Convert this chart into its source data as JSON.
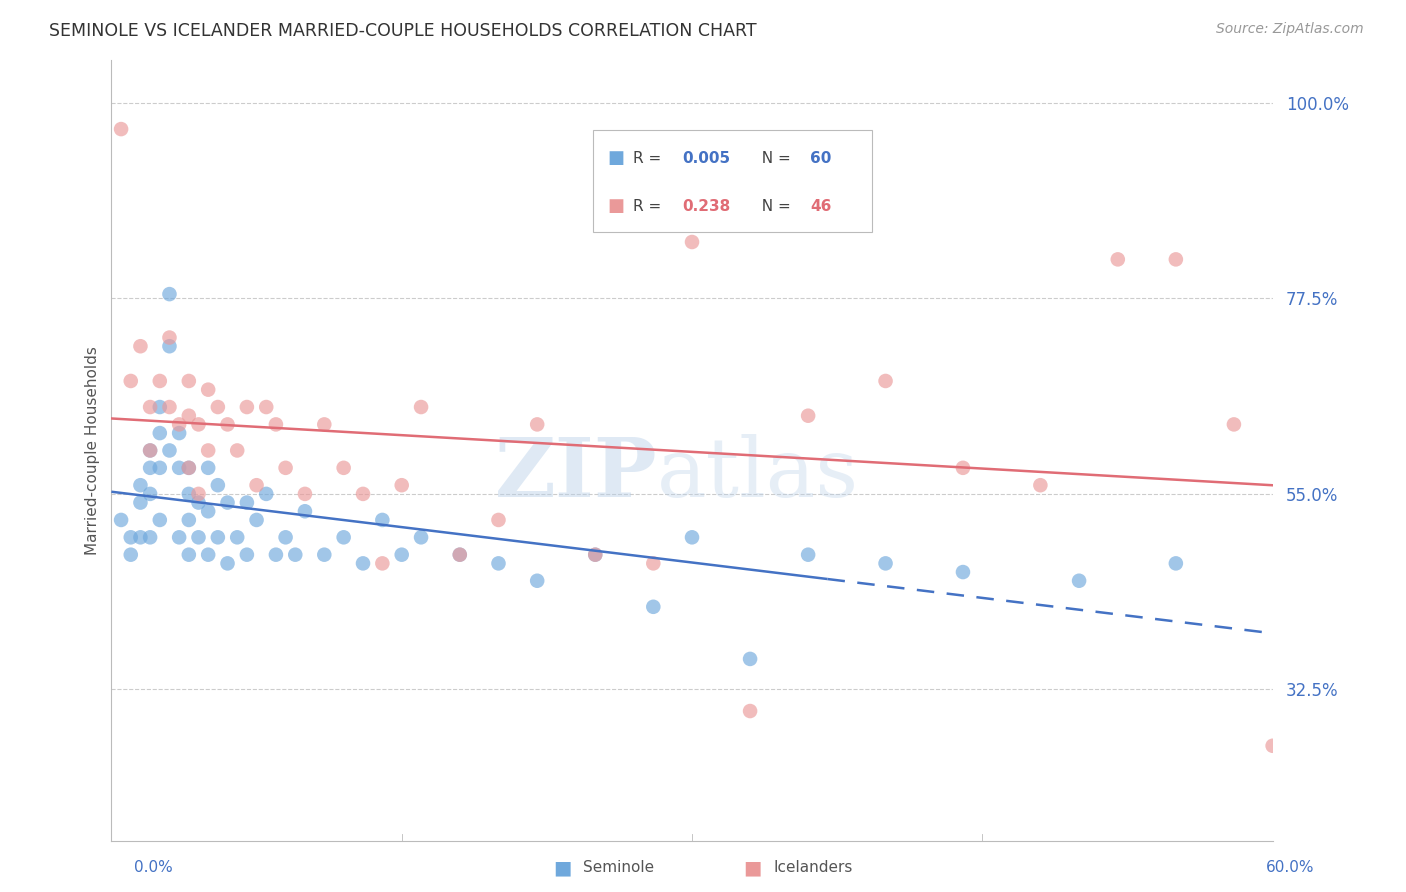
{
  "title": "SEMINOLE VS ICELANDER MARRIED-COUPLE HOUSEHOLDS CORRELATION CHART",
  "source": "Source: ZipAtlas.com",
  "ylabel": "Married-couple Households",
  "ytick_vals": [
    1.0,
    0.775,
    0.55,
    0.325
  ],
  "xmin": 0.0,
  "xmax": 0.6,
  "ymin": 0.15,
  "ymax": 1.05,
  "color_blue": "#6fa8dc",
  "color_pink": "#ea9999",
  "color_blue_line": "#4472c4",
  "color_pink_line": "#e06c75",
  "color_axis_labels": "#4472c4",
  "watermark_zip": "ZIP",
  "watermark_atlas": "atlas",
  "seminole_x": [
    0.005,
    0.01,
    0.01,
    0.015,
    0.015,
    0.015,
    0.02,
    0.02,
    0.02,
    0.02,
    0.025,
    0.025,
    0.025,
    0.025,
    0.03,
    0.03,
    0.03,
    0.035,
    0.035,
    0.035,
    0.04,
    0.04,
    0.04,
    0.04,
    0.045,
    0.045,
    0.05,
    0.05,
    0.05,
    0.055,
    0.055,
    0.06,
    0.06,
    0.065,
    0.07,
    0.07,
    0.075,
    0.08,
    0.085,
    0.09,
    0.095,
    0.1,
    0.11,
    0.12,
    0.13,
    0.14,
    0.15,
    0.16,
    0.18,
    0.2,
    0.22,
    0.25,
    0.28,
    0.3,
    0.33,
    0.36,
    0.4,
    0.44,
    0.5,
    0.55
  ],
  "seminole_y": [
    0.52,
    0.48,
    0.5,
    0.56,
    0.54,
    0.5,
    0.6,
    0.58,
    0.55,
    0.5,
    0.65,
    0.62,
    0.58,
    0.52,
    0.78,
    0.72,
    0.6,
    0.62,
    0.58,
    0.5,
    0.58,
    0.55,
    0.52,
    0.48,
    0.54,
    0.5,
    0.58,
    0.53,
    0.48,
    0.56,
    0.5,
    0.54,
    0.47,
    0.5,
    0.54,
    0.48,
    0.52,
    0.55,
    0.48,
    0.5,
    0.48,
    0.53,
    0.48,
    0.5,
    0.47,
    0.52,
    0.48,
    0.5,
    0.48,
    0.47,
    0.45,
    0.48,
    0.42,
    0.5,
    0.36,
    0.48,
    0.47,
    0.46,
    0.45,
    0.47
  ],
  "icelander_x": [
    0.005,
    0.01,
    0.015,
    0.02,
    0.02,
    0.025,
    0.03,
    0.03,
    0.035,
    0.04,
    0.04,
    0.04,
    0.045,
    0.045,
    0.05,
    0.05,
    0.055,
    0.06,
    0.065,
    0.07,
    0.075,
    0.08,
    0.085,
    0.09,
    0.1,
    0.11,
    0.12,
    0.13,
    0.14,
    0.15,
    0.16,
    0.18,
    0.2,
    0.22,
    0.25,
    0.28,
    0.3,
    0.33,
    0.36,
    0.4,
    0.44,
    0.48,
    0.52,
    0.55,
    0.58,
    0.6
  ],
  "icelander_y": [
    0.97,
    0.68,
    0.72,
    0.65,
    0.6,
    0.68,
    0.73,
    0.65,
    0.63,
    0.68,
    0.64,
    0.58,
    0.63,
    0.55,
    0.67,
    0.6,
    0.65,
    0.63,
    0.6,
    0.65,
    0.56,
    0.65,
    0.63,
    0.58,
    0.55,
    0.63,
    0.58,
    0.55,
    0.47,
    0.56,
    0.65,
    0.48,
    0.52,
    0.63,
    0.48,
    0.47,
    0.84,
    0.3,
    0.64,
    0.68,
    0.58,
    0.56,
    0.82,
    0.82,
    0.63,
    0.26
  ]
}
